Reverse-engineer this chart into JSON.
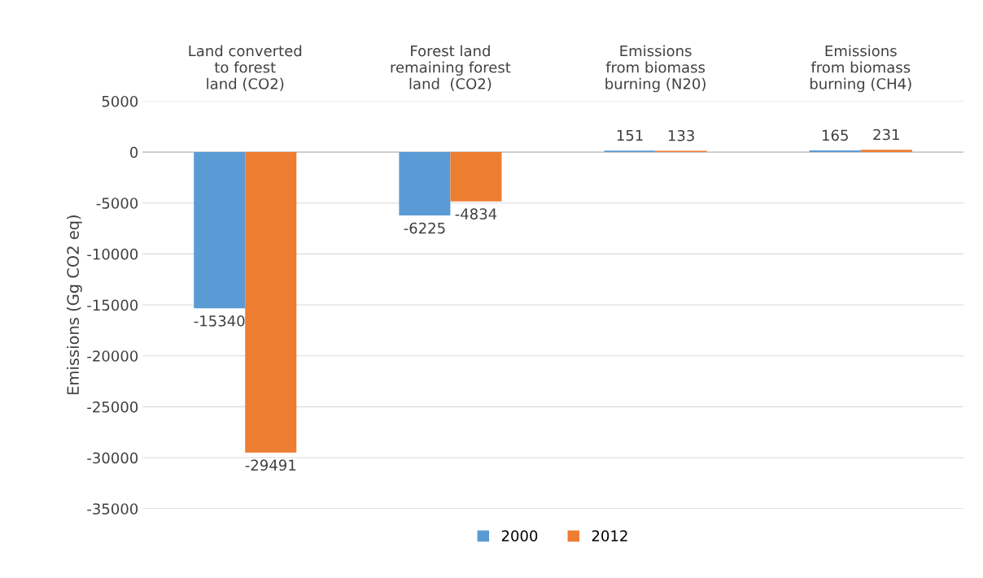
{
  "chart_data": {
    "type": "bar",
    "ylabel": "Emissions (Gg CO2 eq)",
    "categories": [
      "Land converted\nto forest\nland (CO2)",
      "Forest land\nremaining forest\nland  (CO2)",
      "Emissions\nfrom biomass\nburning (N20)",
      "Emissions\nfrom biomass\nburning (CH4)"
    ],
    "series": [
      {
        "name": "2000",
        "color": "#5b9bd5",
        "values": [
          -15340,
          -6225,
          151,
          165
        ]
      },
      {
        "name": "2012",
        "color": "#ed7d31",
        "values": [
          -29491,
          -4834,
          133,
          231
        ]
      }
    ],
    "ylim": [
      -35000,
      5000
    ],
    "yticks": [
      -35000,
      -30000,
      -25000,
      -20000,
      -15000,
      -10000,
      -5000,
      0,
      5000
    ],
    "grid": "y",
    "legend": "bottom",
    "data_labels": true
  }
}
